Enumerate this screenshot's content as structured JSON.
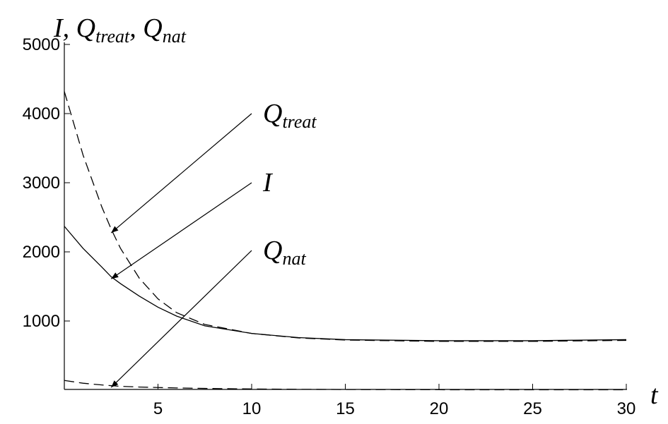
{
  "chart_data": {
    "type": "line",
    "ylabel_parts": [
      {
        "text": "I, Q"
      },
      {
        "text": "treat",
        "sub": true
      },
      {
        "text": ", Q"
      },
      {
        "text": "nat",
        "sub": true
      }
    ],
    "xlabel": "t",
    "x": [
      0,
      1,
      2,
      2.5,
      3,
      4,
      5,
      6,
      7.5,
      10,
      12.5,
      15,
      20,
      25,
      30
    ],
    "series": [
      {
        "color": "#000",
        "dashed": false,
        "values": [
          2370,
          2050,
          1780,
          1640,
          1540,
          1360,
          1200,
          1070,
          930,
          820,
          760,
          730,
          715,
          715,
          730
        ]
      },
      {
        "color": "#000",
        "dashed": true,
        "values": [
          4320,
          3400,
          2650,
          2330,
          2050,
          1620,
          1320,
          1120,
          950,
          820,
          755,
          725,
          705,
          705,
          720
        ]
      },
      {
        "color": "#000",
        "dashed": true,
        "values": [
          140,
          100,
          75,
          65,
          55,
          45,
          38,
          32,
          25,
          17,
          12,
          9,
          6,
          5,
          5
        ]
      }
    ],
    "annotations": [
      {
        "parts": [
          {
            "text": "Q"
          },
          {
            "text": "treat",
            "sub": true
          }
        ],
        "xy": [
          2.5,
          2275
        ],
        "xytext": [
          10,
          4000
        ]
      },
      {
        "parts": [
          {
            "text": "I"
          }
        ],
        "xy": [
          2.5,
          1610
        ],
        "xytext": [
          10,
          3000
        ]
      },
      {
        "parts": [
          {
            "text": "Q"
          },
          {
            "text": "nat",
            "sub": true
          }
        ],
        "xy": [
          2.5,
          40
        ],
        "xytext": [
          10,
          2020
        ]
      }
    ],
    "xlim": [
      0,
      30
    ],
    "ylim": [
      0,
      5000
    ],
    "xticks": [
      5,
      10,
      15,
      20,
      25,
      30
    ],
    "yticks": [
      1000,
      2000,
      3000,
      4000,
      5000
    ]
  }
}
